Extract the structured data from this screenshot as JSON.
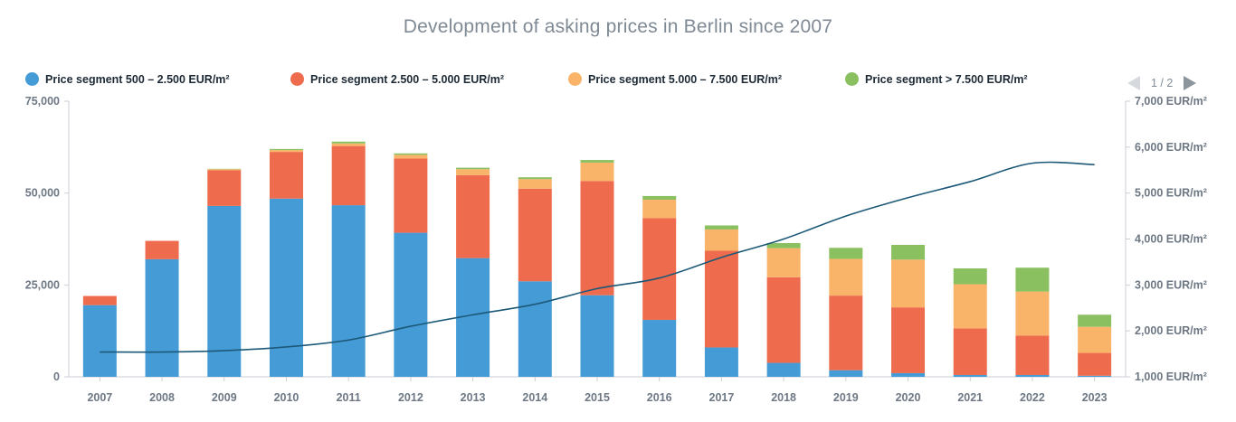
{
  "title": "Development of asking prices in Berlin since 2007",
  "pager": {
    "text": "1 / 2",
    "prev_icon": "triangle-left-icon",
    "next_icon": "triangle-right-icon"
  },
  "legend": [
    {
      "label": "Price segment 500 – 2.500 EUR/m²",
      "color": "#459bd6"
    },
    {
      "label": "Price segment 2.500 – 5.000 EUR/m²",
      "color": "#ee6b4d"
    },
    {
      "label": "Price segment 5.000 – 7.500 EUR/m²",
      "color": "#fab46a"
    },
    {
      "label": "Price segment > 7.500 EUR/m²",
      "color": "#8bc060"
    }
  ],
  "chart_data": {
    "type": "bar",
    "stacked": true,
    "categories": [
      "2007",
      "2008",
      "2009",
      "2010",
      "2011",
      "2012",
      "2013",
      "2014",
      "2015",
      "2016",
      "2017",
      "2018",
      "2019",
      "2020",
      "2021",
      "2022",
      "2023"
    ],
    "series": [
      {
        "name": "Price segment 500 – 2.500 EUR/m²",
        "color": "#459bd6",
        "values": [
          19500,
          32000,
          46500,
          48500,
          46700,
          39200,
          32300,
          26000,
          22200,
          15500,
          8000,
          3800,
          1800,
          1000,
          500,
          500,
          300
        ]
      },
      {
        "name": "Price segment 2.500 – 5.000 EUR/m²",
        "color": "#ee6b4d",
        "values": [
          2500,
          5000,
          9700,
          12700,
          16100,
          20200,
          22600,
          25200,
          31100,
          27700,
          26300,
          23300,
          20300,
          17900,
          12700,
          10700,
          6200
        ]
      },
      {
        "name": "Price segment 5.000 – 7.500 EUR/m²",
        "color": "#fab46a",
        "values": [
          0,
          0,
          300,
          500,
          700,
          1000,
          1600,
          2600,
          5000,
          5000,
          5800,
          7900,
          10000,
          13000,
          12000,
          12000,
          7100
        ]
      },
      {
        "name": "Price segment > 7.500 EUR/m²",
        "color": "#8bc060",
        "values": [
          0,
          0,
          100,
          300,
          500,
          400,
          400,
          500,
          700,
          1000,
          1100,
          1400,
          3000,
          4000,
          4300,
          6500,
          3300
        ]
      }
    ],
    "line": {
      "color": "#1c5877",
      "axis": "right",
      "values": [
        1540,
        1540,
        1570,
        1650,
        1800,
        2100,
        2350,
        2580,
        2920,
        3150,
        3600,
        4000,
        4500,
        4900,
        5250,
        5650,
        5620
      ]
    },
    "yleft": {
      "min": 0,
      "max": 75000,
      "ticks": [
        "0",
        "25,000",
        "50,000",
        "75,000"
      ]
    },
    "yright": {
      "min": 1000,
      "max": 7000,
      "ticks": [
        "1,000 EUR/m²",
        "2,000 EUR/m²",
        "3,000 EUR/m²",
        "4,000 EUR/m²",
        "5,000 EUR/m²",
        "6,000 EUR/m²",
        "7,000 EUR/m²"
      ]
    },
    "grid": false
  }
}
